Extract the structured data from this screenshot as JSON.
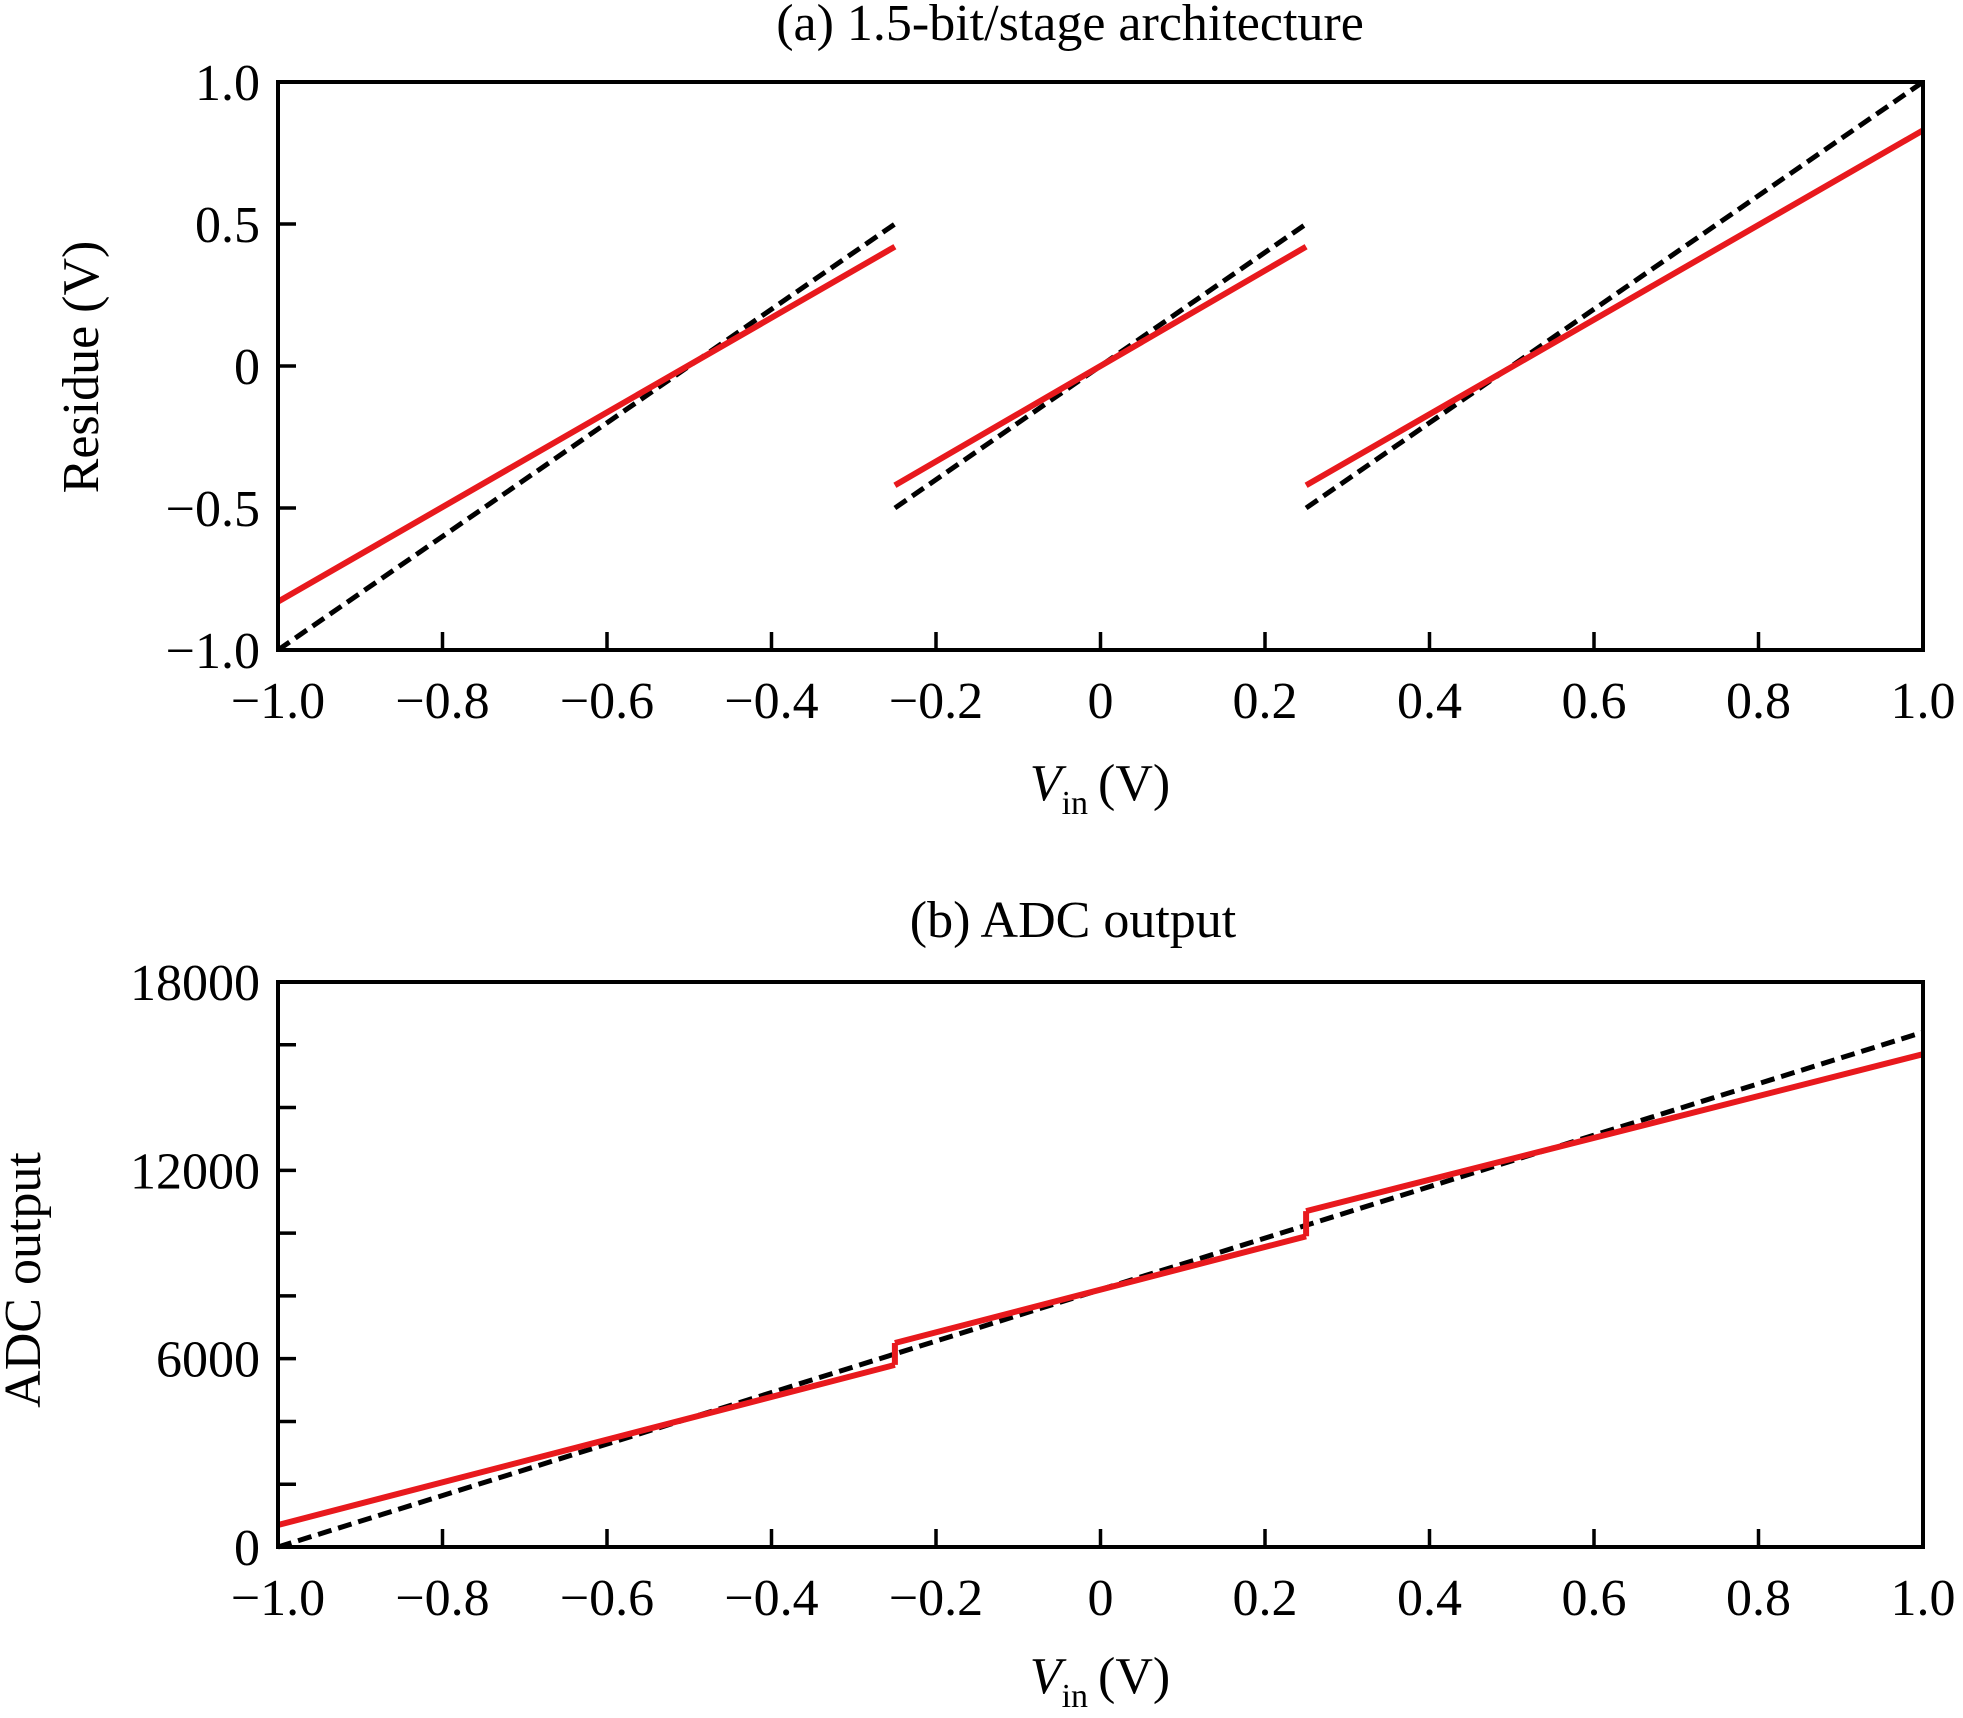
{
  "chart_data": [
    {
      "id": "a",
      "type": "line",
      "title": "(a) 1.5-bit/stage architecture",
      "xlabel_main": "V",
      "xlabel_sub": "in",
      "xlabel_unit": "(V)",
      "ylabel": "Residue (V)",
      "xlim": [
        -1.0,
        1.0
      ],
      "ylim": [
        -1.0,
        1.0
      ],
      "xticks": [
        -1.0,
        -0.8,
        -0.6,
        -0.4,
        -0.2,
        0,
        0.2,
        0.4,
        0.6,
        0.8,
        1.0
      ],
      "xtick_labels": [
        "−1.0",
        "−0.8",
        "−0.6",
        "−0.4",
        "−0.2",
        "0",
        "0.2",
        "0.4",
        "0.6",
        "0.8",
        "1.0"
      ],
      "yticks": [
        -1.0,
        -0.5,
        0,
        0.5,
        1.0
      ],
      "ytick_labels": [
        "−1.0",
        "−0.5",
        "0",
        "0.5",
        "1.0"
      ],
      "grid": false,
      "series": [
        {
          "style": "dashed",
          "color": "#000000",
          "segments": [
            [
              [
                -1.0,
                -1.0
              ],
              [
                -0.25,
                0.5
              ]
            ],
            [
              [
                -0.25,
                -0.5
              ],
              [
                0.25,
                0.5
              ]
            ],
            [
              [
                0.25,
                -0.5
              ],
              [
                1.0,
                1.0
              ]
            ]
          ]
        },
        {
          "style": "solid",
          "color": "#e8191d",
          "segments": [
            [
              [
                -1.0,
                -0.83
              ],
              [
                -0.25,
                0.42
              ]
            ],
            [
              [
                -0.25,
                -0.42
              ],
              [
                0.25,
                0.42
              ]
            ],
            [
              [
                0.25,
                -0.42
              ],
              [
                1.0,
                0.83
              ]
            ]
          ]
        }
      ]
    },
    {
      "id": "b",
      "type": "line",
      "title": "(b) ADC output",
      "xlabel_main": "V",
      "xlabel_sub": "in",
      "xlabel_unit": "(V)",
      "ylabel": "ADC output",
      "xlim": [
        -1.0,
        1.0
      ],
      "ylim": [
        0,
        18000
      ],
      "xticks": [
        -1.0,
        -0.8,
        -0.6,
        -0.4,
        -0.2,
        0,
        0.2,
        0.4,
        0.6,
        0.8,
        1.0
      ],
      "xtick_labels": [
        "−1.0",
        "−0.8",
        "−0.6",
        "−0.4",
        "−0.2",
        "0",
        "0.2",
        "0.4",
        "0.6",
        "0.8",
        "1.0"
      ],
      "yticks": [
        0,
        6000,
        12000,
        18000
      ],
      "ytick_labels": [
        "0",
        "6000",
        "12000",
        "18000"
      ],
      "yminor_ticks": [
        2000,
        4000,
        8000,
        10000,
        14000,
        16000
      ],
      "grid": false,
      "series": [
        {
          "style": "dashed",
          "color": "#000000",
          "segments": [
            [
              [
                -1.0,
                0
              ],
              [
                1.0,
                16400
              ]
            ]
          ]
        },
        {
          "style": "solid",
          "color": "#e8191d",
          "segments": [
            [
              [
                -1.0,
                700
              ],
              [
                -0.25,
                5800
              ]
            ],
            [
              [
                -0.25,
                5800
              ],
              [
                -0.25,
                6500
              ]
            ],
            [
              [
                -0.25,
                6500
              ],
              [
                0.25,
                9900
              ]
            ],
            [
              [
                0.25,
                9900
              ],
              [
                0.25,
                10700
              ]
            ],
            [
              [
                0.25,
                10700
              ],
              [
                1.0,
                15700
              ]
            ]
          ]
        }
      ]
    }
  ]
}
